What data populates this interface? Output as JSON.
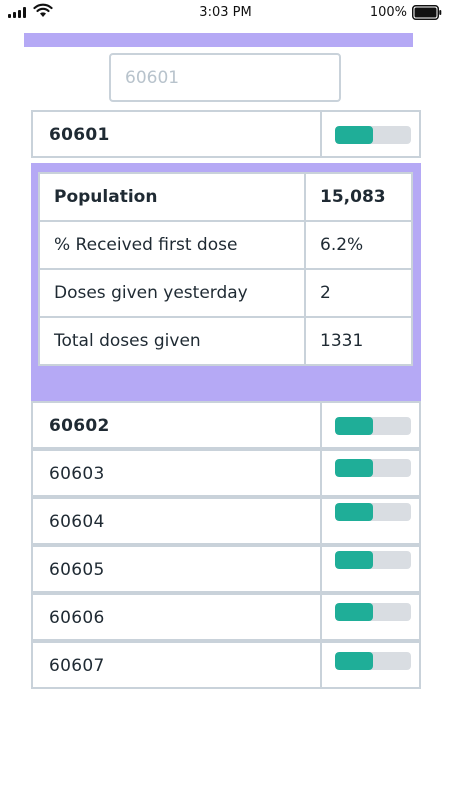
{
  "status_bar": {
    "time": "3:03 PM",
    "battery": "100%"
  },
  "search": {
    "placeholder": "60601"
  },
  "selected_zip": {
    "zip": "60601",
    "fill": 0.5
  },
  "details": {
    "population": {
      "label": "Population",
      "value": "15,083"
    },
    "first_dose": {
      "label": "% Received first dose",
      "value": "6.2%"
    },
    "yesterday": {
      "label": "Doses given yesterday",
      "value": "2"
    },
    "total": {
      "label": "Total doses given",
      "value": "1331"
    }
  },
  "zip_list": [
    {
      "zip": "60602",
      "fill": 0.5
    },
    {
      "zip": "60603",
      "fill": 0.5
    },
    {
      "zip": "60604",
      "fill": 0.5
    },
    {
      "zip": "60605",
      "fill": 0.5
    },
    {
      "zip": "60606",
      "fill": 0.5
    },
    {
      "zip": "60607",
      "fill": 0.5
    }
  ],
  "colors": {
    "accent": "#b5a9f5",
    "toggle_fill": "#1fae98",
    "toggle_track": "#d9dde2",
    "border": "#c9d2da"
  }
}
